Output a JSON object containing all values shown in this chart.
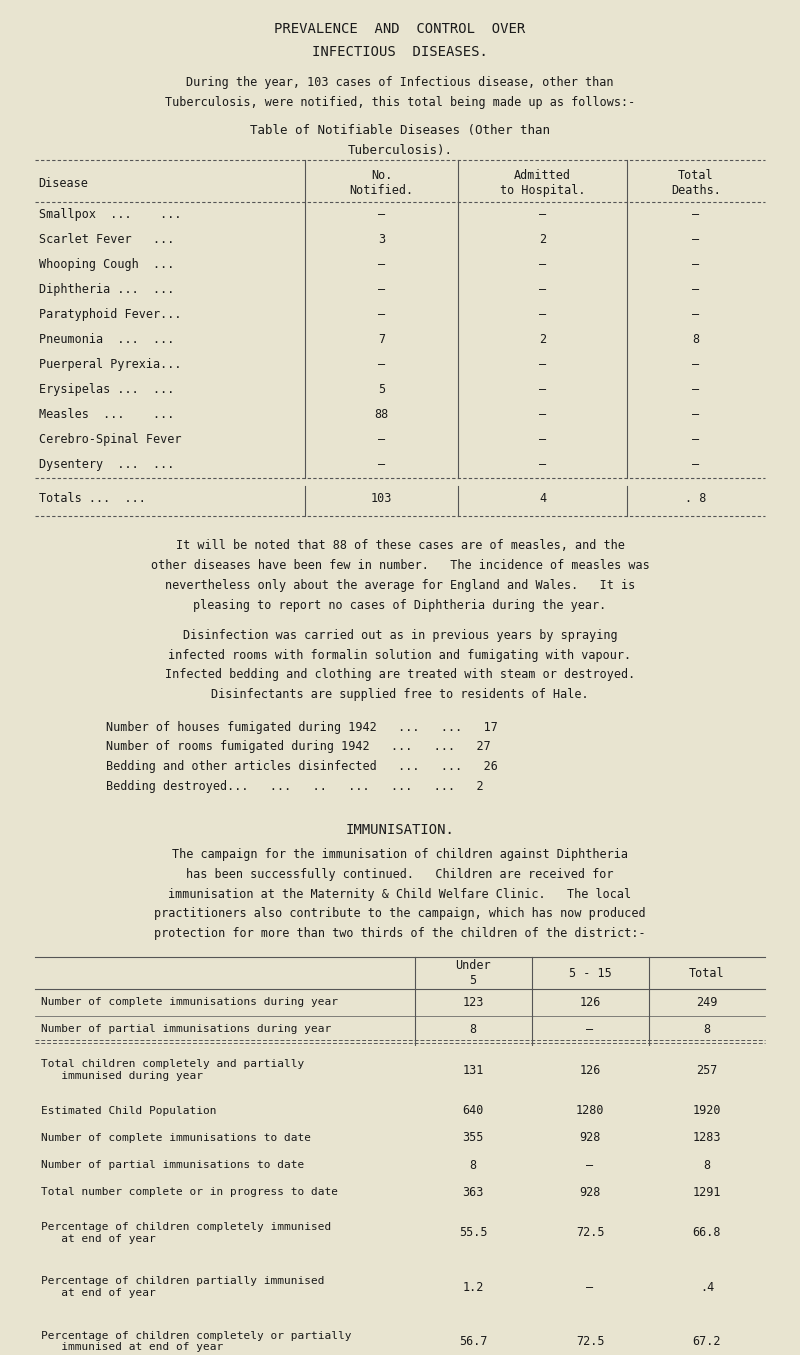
{
  "bg_color": "#e8e4d0",
  "title_line1": "PREVALENCE  AND  CONTROL  OVER",
  "title_line2": "INFECTIOUS  DISEASES.",
  "intro_text": "During the year, 103 cases of Infectious disease, other than\nTuberculosis, were notified, this total being made up as follows:-",
  "table1_title_line1": "Table of Notifiable Diseases (Other than",
  "table1_title_line2": "Tuberculosis).",
  "table1_headers": [
    "Disease",
    "No.\nNotified.",
    "Admitted\nto Hospital.",
    "Total\nDeaths."
  ],
  "table1_rows": [
    [
      "Smallpox  ...    ...",
      "—",
      "—",
      "—"
    ],
    [
      "Scarlet Fever   ...",
      "3",
      "2",
      "—"
    ],
    [
      "Whooping Cough  ...",
      "—",
      "—",
      "—"
    ],
    [
      "Diphtheria ...  ...",
      "—",
      "—",
      "—"
    ],
    [
      "Paratyphoid Fever...",
      "—",
      "—",
      "—"
    ],
    [
      "Pneumonia  ...  ...",
      "7",
      "2",
      "8"
    ],
    [
      "Puerperal Pyrexia...",
      "—",
      "—",
      "—"
    ],
    [
      "Erysipelas ...  ...",
      "5",
      "—",
      "—"
    ],
    [
      "Measles  ...    ...",
      "88",
      "—",
      "—"
    ],
    [
      "Cerebro-Spinal Fever",
      "—",
      "—",
      "—"
    ],
    [
      "Dysentery  ...  ...",
      "—",
      "—",
      "—"
    ]
  ],
  "table1_totals": [
    "Totals ...  ...",
    "103",
    "4",
    ". 8"
  ],
  "para1": "It will be noted that 88 of these cases are of measles, and the\nother diseases have been few in number.   The incidence of measles was\nnevertheless only about the average for England and Wales.   It is\npleasing to report no cases of Diphtheria during the year.",
  "para2": "Disinfection was carried out as in previous years by spraying\ninfected rooms with formalin solution and fumigating with vapour.\nInfected bedding and clothing are treated with steam or destroyed.\nDisinfectants are supplied free to residents of Hale.",
  "stats_lines": [
    "Number of houses fumigated during 1942   ...   ...   17",
    "Number of rooms fumigated during 1942   ...   ...   27",
    "Bedding and other articles disinfected   ...   ...   26",
    "Bedding destroyed...   ...   ..   ...   ...   ...   2"
  ],
  "immunisation_title": "IMMUNISATION.",
  "immunisation_para": "The campaign for the immunisation of children against Diphtheria\nhas been successfully continued.   Children are received for\nimmunisation at the Maternity & Child Welfare Clinic.   The local\npractitioners also contribute to the campaign, which has now produced\nprotection for more than two thirds of the children of the district:-",
  "table2_col_headers": [
    "Under\n5",
    "5 - 15",
    "Total"
  ],
  "table2_rows": [
    [
      "Number of complete immunisations during year",
      "123",
      "126",
      "249"
    ],
    [
      "Number of partial immunisations during year",
      "8",
      "—",
      "8"
    ],
    [
      "Total children completely and partially\n   immunised during year",
      "131",
      "126",
      "257"
    ],
    [
      "Estimated Child Population",
      "640",
      "1280",
      "1920"
    ],
    [
      "Number of complete immunisations to date",
      "355",
      "928",
      "1283"
    ],
    [
      "Number of partial immunisations to date",
      "8",
      "—",
      "8"
    ],
    [
      "Total number complete or in progress to date",
      "363",
      "928",
      "1291"
    ],
    [
      "Percentage of children completely immunised\n   at end of year",
      "55.5",
      "72.5",
      "66.8"
    ],
    [
      "Percentage of children partially immunised\n   at end of year",
      "1.2",
      "—",
      ".4"
    ],
    [
      "Percentage of children completely or partially\n   immunised at end of year",
      "56.7",
      "72.5",
      "67.2"
    ]
  ],
  "table2_double_sep_after": [
    1,
    3,
    6,
    8
  ]
}
